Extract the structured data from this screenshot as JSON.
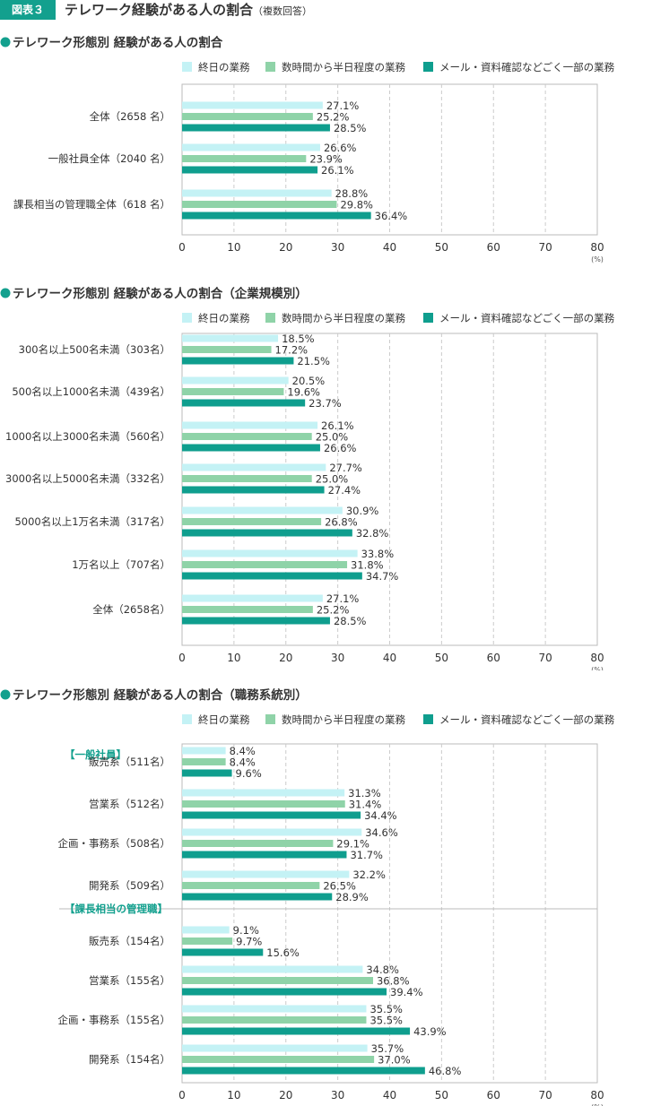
{
  "figure": {
    "badge": "図表３",
    "title": "テレワーク経験がある人の割合",
    "subtitle": "（複数回答）"
  },
  "colors": {
    "series1": "#c4f2f5",
    "series2": "#8fd3a8",
    "series3": "#0f9e8e",
    "accent": "#13a08e"
  },
  "chart_data": [
    {
      "type": "bar",
      "orientation": "horizontal",
      "title": "テレワーク形態別 経験がある人の割合",
      "unit_label": "(%)",
      "xlim": [
        0,
        80
      ],
      "xticks": [
        0,
        10,
        20,
        30,
        40,
        50,
        60,
        70,
        80
      ],
      "grid": true,
      "legend": "top",
      "categories": [
        "全体（2658 名）",
        "一般社員全体（2040 名）",
        "課長相当の管理職全体（618 名）"
      ],
      "series": [
        {
          "name": "終日の業務",
          "values": [
            27.1,
            26.6,
            28.8
          ]
        },
        {
          "name": "数時間から半日程度の業務",
          "values": [
            25.2,
            23.9,
            29.8
          ]
        },
        {
          "name": "メール・資料確認などごく一部の業務",
          "values": [
            28.5,
            26.1,
            36.4
          ]
        }
      ]
    },
    {
      "type": "bar",
      "orientation": "horizontal",
      "title": "テレワーク形態別 経験がある人の割合（企業規模別）",
      "unit_label": "(%)",
      "xlim": [
        0,
        80
      ],
      "xticks": [
        0,
        10,
        20,
        30,
        40,
        50,
        60,
        70,
        80
      ],
      "grid": true,
      "legend": "top",
      "categories": [
        "300名以上500名未満（303名）",
        "500名以上1000名未満（439名）",
        "1000名以上3000名未満（560名）",
        "3000名以上5000名未満（332名）",
        "5000名以上1万名未満（317名）",
        "1万名以上（707名）",
        "全体（2658名）"
      ],
      "series": [
        {
          "name": "終日の業務",
          "values": [
            18.5,
            20.5,
            26.1,
            27.7,
            30.9,
            33.8,
            27.1
          ]
        },
        {
          "name": "数時間から半日程度の業務",
          "values": [
            17.2,
            19.6,
            25.0,
            25.0,
            26.8,
            31.8,
            25.2
          ]
        },
        {
          "name": "メール・資料確認などごく一部の業務",
          "values": [
            21.5,
            23.7,
            26.6,
            27.4,
            32.8,
            34.7,
            28.5
          ]
        }
      ]
    },
    {
      "type": "bar",
      "orientation": "horizontal",
      "title": "テレワーク形態別 経験がある人の割合（職務系統別）",
      "unit_label": "(%)",
      "xlim": [
        0,
        80
      ],
      "xticks": [
        0,
        10,
        20,
        30,
        40,
        50,
        60,
        70,
        80
      ],
      "grid": true,
      "legend": "top",
      "groups": [
        "【一般社員】",
        "【課長相当の管理職】"
      ],
      "categories": [
        "販売系（511名）",
        "営業系（512名）",
        "企画・事務系（508名）",
        "開発系（509名）",
        "販売系（154名）",
        "営業系（155名）",
        "企画・事務系（155名）",
        "開発系（154名）"
      ],
      "series": [
        {
          "name": "終日の業務",
          "values": [
            8.4,
            31.3,
            34.6,
            32.2,
            9.1,
            34.8,
            35.5,
            35.7
          ]
        },
        {
          "name": "数時間から半日程度の業務",
          "values": [
            8.4,
            31.4,
            29.1,
            26.5,
            9.7,
            36.8,
            35.5,
            37.0
          ]
        },
        {
          "name": "メール・資料確認などごく一部の業務",
          "values": [
            9.6,
            34.4,
            31.7,
            28.9,
            15.6,
            39.4,
            43.9,
            46.8
          ]
        }
      ]
    }
  ]
}
